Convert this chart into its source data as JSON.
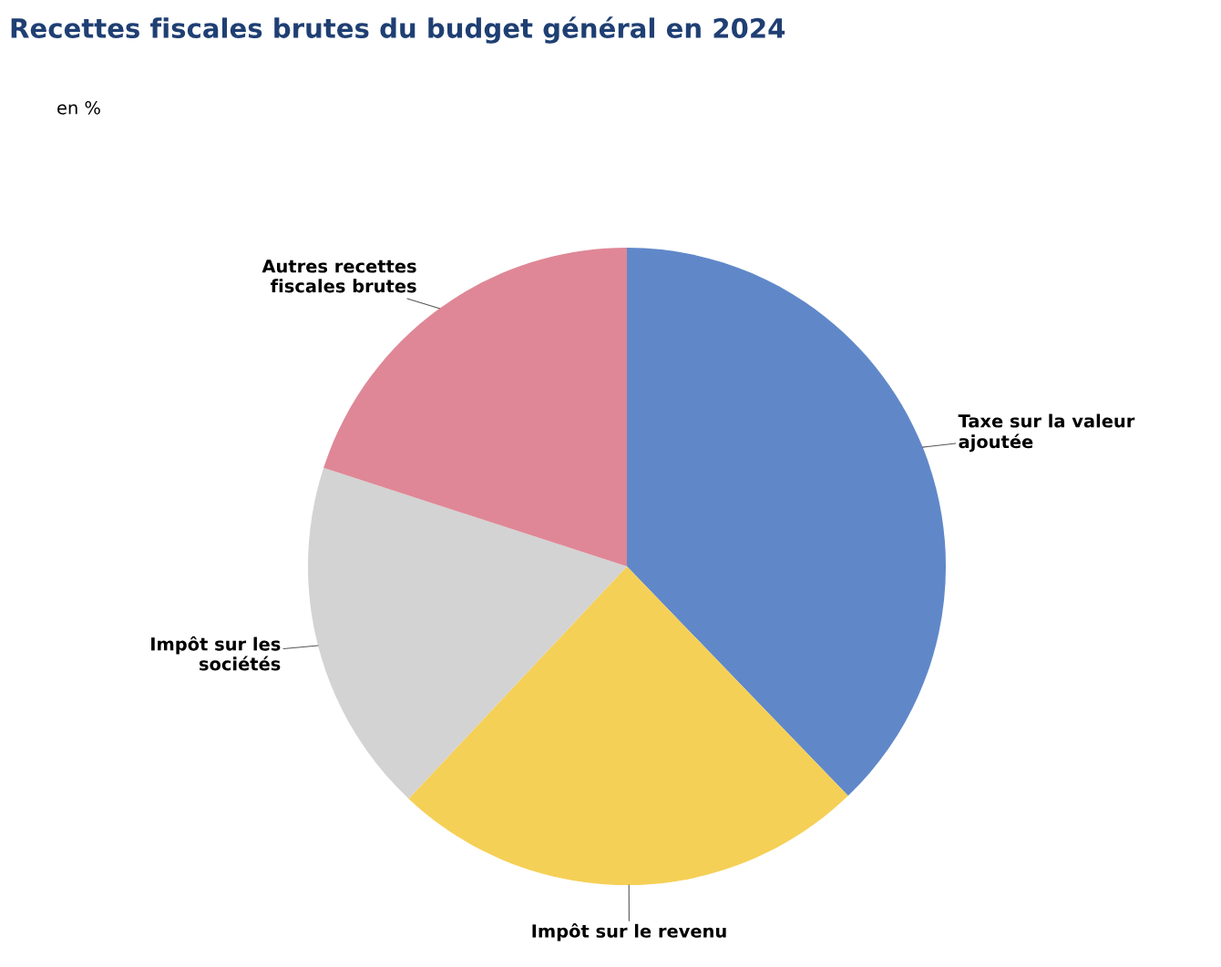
{
  "chart_data": {
    "type": "pie",
    "title": "Recettes fiscales brutes du budget général en 2024",
    "subtitle": "en %",
    "categories": [
      "Taxe sur la valeur\najoutée",
      "Impôt sur le revenu",
      "Impôt sur les\nsociétés",
      "Autres recettes\nfiscales brutes"
    ],
    "values": [
      37.8,
      24.2,
      18.0,
      20.0
    ],
    "colors": [
      "#6088c9",
      "#f5d056",
      "#d3d3d3",
      "#df8796"
    ]
  }
}
